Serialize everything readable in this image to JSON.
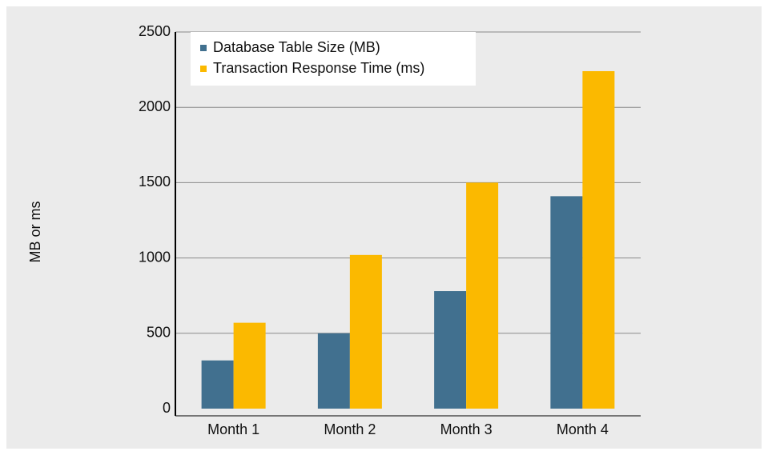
{
  "chart_data": {
    "type": "bar",
    "y_label": "MB or ms",
    "categories": [
      "Month 1",
      "Month 2",
      "Month 3",
      "Month 4"
    ],
    "series": [
      {
        "name": "Database Table Size (MB)",
        "color": "#41708f",
        "values": [
          320,
          500,
          780,
          1410
        ]
      },
      {
        "name": "Transaction Response Time (ms)",
        "color": "#fbb900",
        "values": [
          570,
          1020,
          1500,
          2240
        ]
      }
    ],
    "ylim": [
      0,
      2500
    ],
    "yticks": [
      0,
      500,
      1000,
      1500,
      2000,
      2500
    ],
    "grid": true,
    "legend": "upper left"
  }
}
